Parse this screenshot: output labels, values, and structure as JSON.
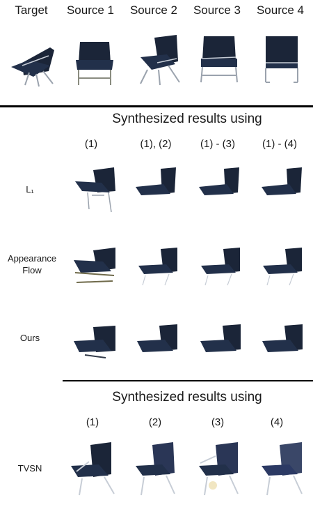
{
  "top_headers": [
    "Target",
    "Source 1",
    "Source 2",
    "Source 3",
    "Source 4"
  ],
  "section1": {
    "title": "Synthesized results using",
    "columns": [
      "(1)",
      "(1), (2)",
      "(1) - (3)",
      "(1) - (4)"
    ],
    "rows": [
      {
        "label": "L₁"
      },
      {
        "label": "Appearance Flow"
      },
      {
        "label": "Ours"
      }
    ]
  },
  "section2": {
    "title": "Synthesized results using",
    "columns": [
      "(1)",
      "(2)",
      "(3)",
      "(4)"
    ],
    "rows": [
      {
        "label": "TVSN"
      }
    ]
  },
  "colors": {
    "chair_body": "#1b2538",
    "chair_highlight": "#4a5a78",
    "chair_leg": "#9aa2ad",
    "rule": "#000000"
  }
}
